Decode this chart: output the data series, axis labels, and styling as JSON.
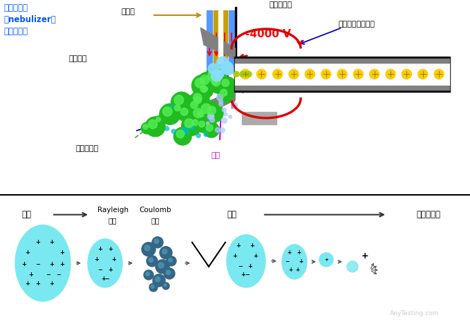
{
  "bg_color": "#ffffff",
  "top_labels": {
    "nebulizer_text": "雾化器组件\n（nebulizer）\n是同轴套管",
    "nebulizer_color": "#0055ff",
    "wuhua_qi": "雾化气",
    "dianpen": "电喷雾离子",
    "voltage": "-4000 V",
    "voltage_color": "#ff0000",
    "heating_gas": "加热的氮气干燥气",
    "solution_spray": "溶剂喷雾",
    "capillary": "毛细管入口",
    "qi_curtain": "气帘",
    "qi_curtain_color": "#cc00cc"
  },
  "bottom_labels": {
    "zhengfa": "蒸发",
    "rayleigh": "Rayleigh",
    "jixian": "极限",
    "coulomb": "Coulomb",
    "baopo": "爆裂",
    "zhengfa2": "蒸发",
    "beifenxi": "被分析离子",
    "anytesting": "AnyTesting.com"
  },
  "tube_blue": "#5599ff",
  "tube_gold": "#c8a000",
  "tube_gray": "#606060",
  "ms_gray": "#808080",
  "ms_dark": "#333333",
  "ion_yellow": "#ffcc00",
  "green_drop": "#22bb22",
  "cyan_drop": "#66ddff",
  "arrow_blue": "#0000cc",
  "arrow_red": "#dd0000",
  "arrow_gray": "#444444"
}
